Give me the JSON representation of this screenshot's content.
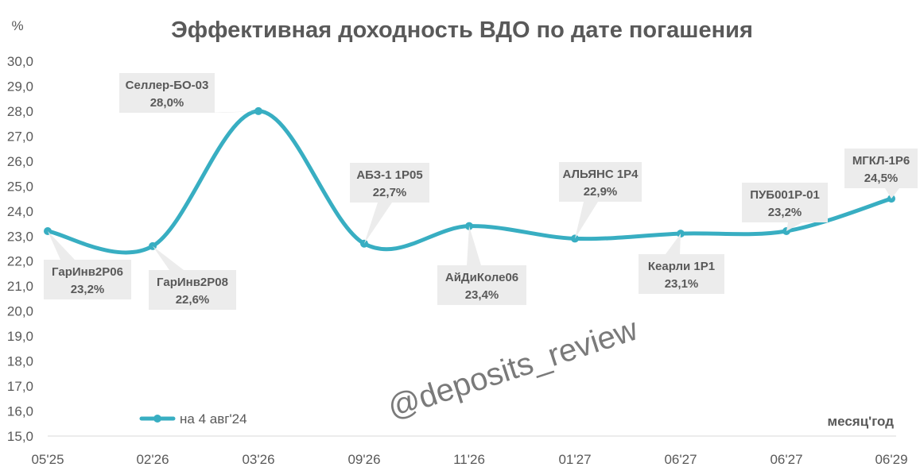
{
  "colors": {
    "series": "#38AEC2",
    "label_bg": "#ECECEC",
    "text": "#595959",
    "axis": "#D9D9D9"
  },
  "watermark": "@deposits_review",
  "chart_data": {
    "type": "line",
    "title": "Эффективная доходность ВДО по дате погашения",
    "ylabel": "%",
    "xlabel": "месяц'год",
    "ylim": [
      15.0,
      30.0
    ],
    "ytick_labels": [
      "15,0",
      "16,0",
      "17,0",
      "18,0",
      "19,0",
      "20,0",
      "21,0",
      "22,0",
      "23,0",
      "24,0",
      "25,0",
      "26,0",
      "27,0",
      "28,0",
      "29,0",
      "30,0"
    ],
    "categories": [
      "05'25",
      "02'26",
      "03'26",
      "09'26",
      "11'26",
      "01'27",
      "06'27",
      "06'27",
      "06'29"
    ],
    "grid": false,
    "legend_position": "bottom-left",
    "series": [
      {
        "name": "на 4 авг'24",
        "values": [
          23.2,
          22.6,
          28.0,
          22.7,
          23.4,
          22.9,
          23.1,
          23.2,
          24.5
        ],
        "point_names": [
          "ГарИнв2Р06",
          "ГарИнв2Р08",
          "Селлер-БО-03",
          "АБЗ-1 1Р05",
          "АйДиКоле06",
          "АЛЬЯНС 1Р4",
          "Кеарли 1Р1",
          "ПУБ001Р-01",
          "МГКЛ-1Р6"
        ],
        "point_labels": [
          "23,2%",
          "22,6%",
          "28,0%",
          "22,7%",
          "23,4%",
          "22,9%",
          "23,1%",
          "23,2%",
          "24,5%"
        ]
      }
    ]
  }
}
